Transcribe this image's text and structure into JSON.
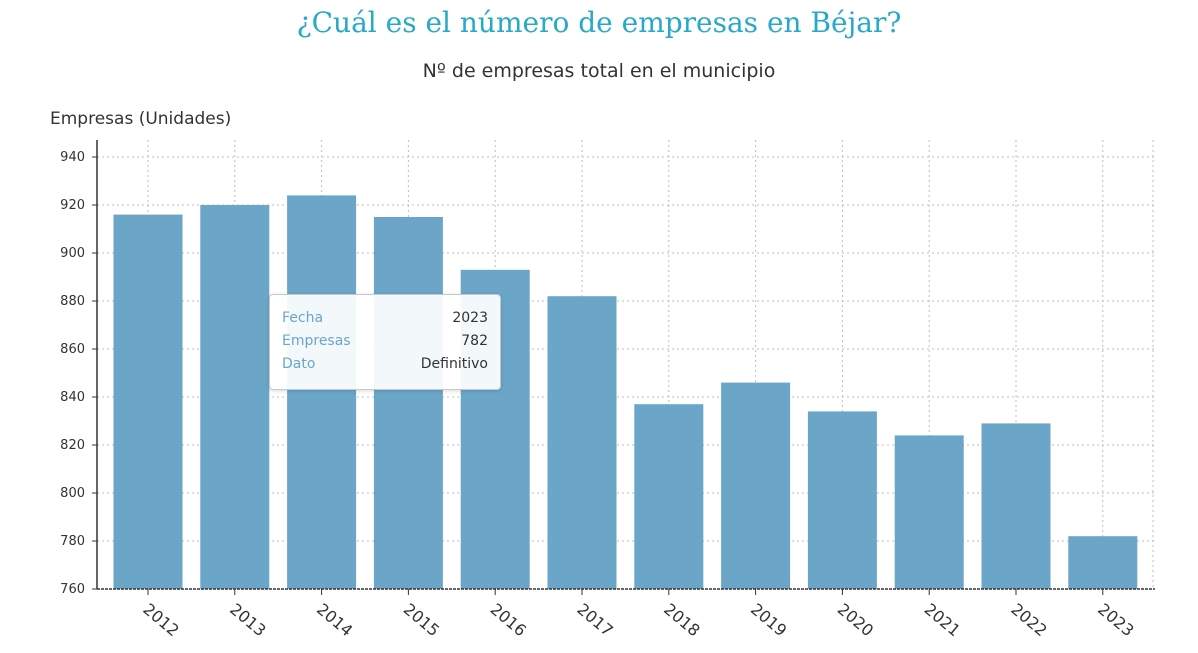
{
  "title": "¿Cuál es el número de empresas en Béjar?",
  "subtitle": "Nº de empresas total en el municipio",
  "tooltip": {
    "rows": [
      {
        "key": "Fecha",
        "value": "2023"
      },
      {
        "key": "Empresas",
        "value": "782"
      },
      {
        "key": "Dato",
        "value": "Definitivo"
      }
    ]
  },
  "chart_data": {
    "type": "bar",
    "title": "¿Cuál es el número de empresas en Béjar?",
    "subtitle": "Nº de empresas total en el municipio",
    "ylabel": "Empresas (Unidades)",
    "xlabel": "",
    "categories": [
      "2012",
      "2013",
      "2014",
      "2015",
      "2016",
      "2017",
      "2018",
      "2019",
      "2020",
      "2021",
      "2022",
      "2023"
    ],
    "values": [
      916,
      920,
      924,
      915,
      893,
      882,
      837,
      846,
      834,
      824,
      829,
      782
    ],
    "ylim": [
      760,
      940
    ],
    "yticks": [
      760,
      780,
      800,
      820,
      840,
      860,
      880,
      900,
      920,
      940
    ],
    "bar_color": "#6ba6c9",
    "title_color": "#27a9c8",
    "grid": true
  }
}
